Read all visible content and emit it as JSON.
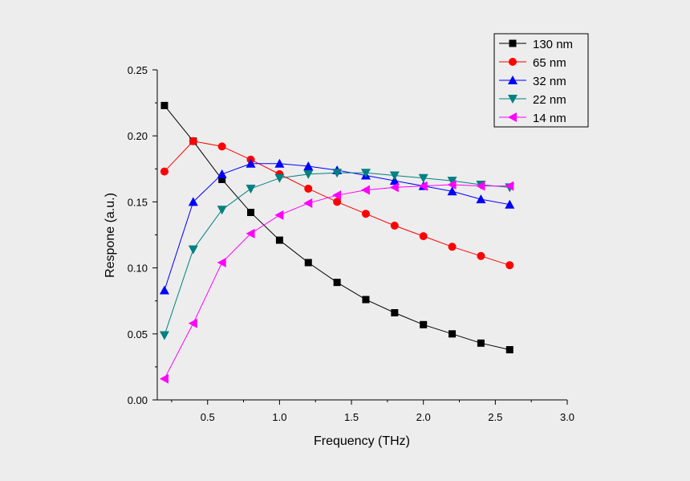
{
  "chart_data": {
    "type": "line",
    "xlabel": "Frequency (THz)",
    "ylabel": "Respone (a.u.)",
    "xlim": [
      0.15,
      3.0
    ],
    "ylim": [
      0.0,
      0.25
    ],
    "xticks": [
      0.5,
      1.0,
      1.5,
      2.0,
      2.5,
      3.0
    ],
    "xtick_labels": [
      "0.5",
      "1.0",
      "1.5",
      "2.0",
      "2.5",
      "3.0"
    ],
    "yticks": [
      0.0,
      0.05,
      0.1,
      0.15,
      0.2,
      0.25
    ],
    "ytick_labels": [
      "0.00",
      "0.05",
      "0.10",
      "0.15",
      "0.20",
      "0.25"
    ],
    "grid": false,
    "legend_position": "top-right",
    "x": [
      0.2,
      0.4,
      0.6,
      0.8,
      1.0,
      1.2,
      1.4,
      1.6,
      1.8,
      2.0,
      2.2,
      2.4,
      2.6
    ],
    "series": [
      {
        "name": "130 nm",
        "color": "#000000",
        "marker": "square",
        "values": [
          0.223,
          0.196,
          0.167,
          0.142,
          0.121,
          0.104,
          0.089,
          0.076,
          0.066,
          0.057,
          0.05,
          0.043,
          0.038
        ]
      },
      {
        "name": "65 nm",
        "color": "#ff0000",
        "marker": "circle",
        "values": [
          0.173,
          0.196,
          0.192,
          0.182,
          0.171,
          0.16,
          0.15,
          0.141,
          0.132,
          0.124,
          0.116,
          0.109,
          0.102
        ]
      },
      {
        "name": "32 nm",
        "color": "#0000ff",
        "marker": "triangle-up",
        "values": [
          0.083,
          0.15,
          0.171,
          0.179,
          0.179,
          0.177,
          0.174,
          0.17,
          0.166,
          0.162,
          0.158,
          0.152,
          0.148
        ]
      },
      {
        "name": "22 nm",
        "color": "#008080",
        "marker": "triangle-down",
        "values": [
          0.049,
          0.114,
          0.144,
          0.16,
          0.168,
          0.171,
          0.172,
          0.172,
          0.17,
          0.168,
          0.166,
          0.163,
          0.161
        ]
      },
      {
        "name": "14 nm",
        "color": "#ff00ff",
        "marker": "triangle-left",
        "values": [
          0.016,
          0.058,
          0.104,
          0.126,
          0.14,
          0.149,
          0.155,
          0.159,
          0.161,
          0.162,
          0.163,
          0.162,
          0.162
        ]
      }
    ]
  }
}
